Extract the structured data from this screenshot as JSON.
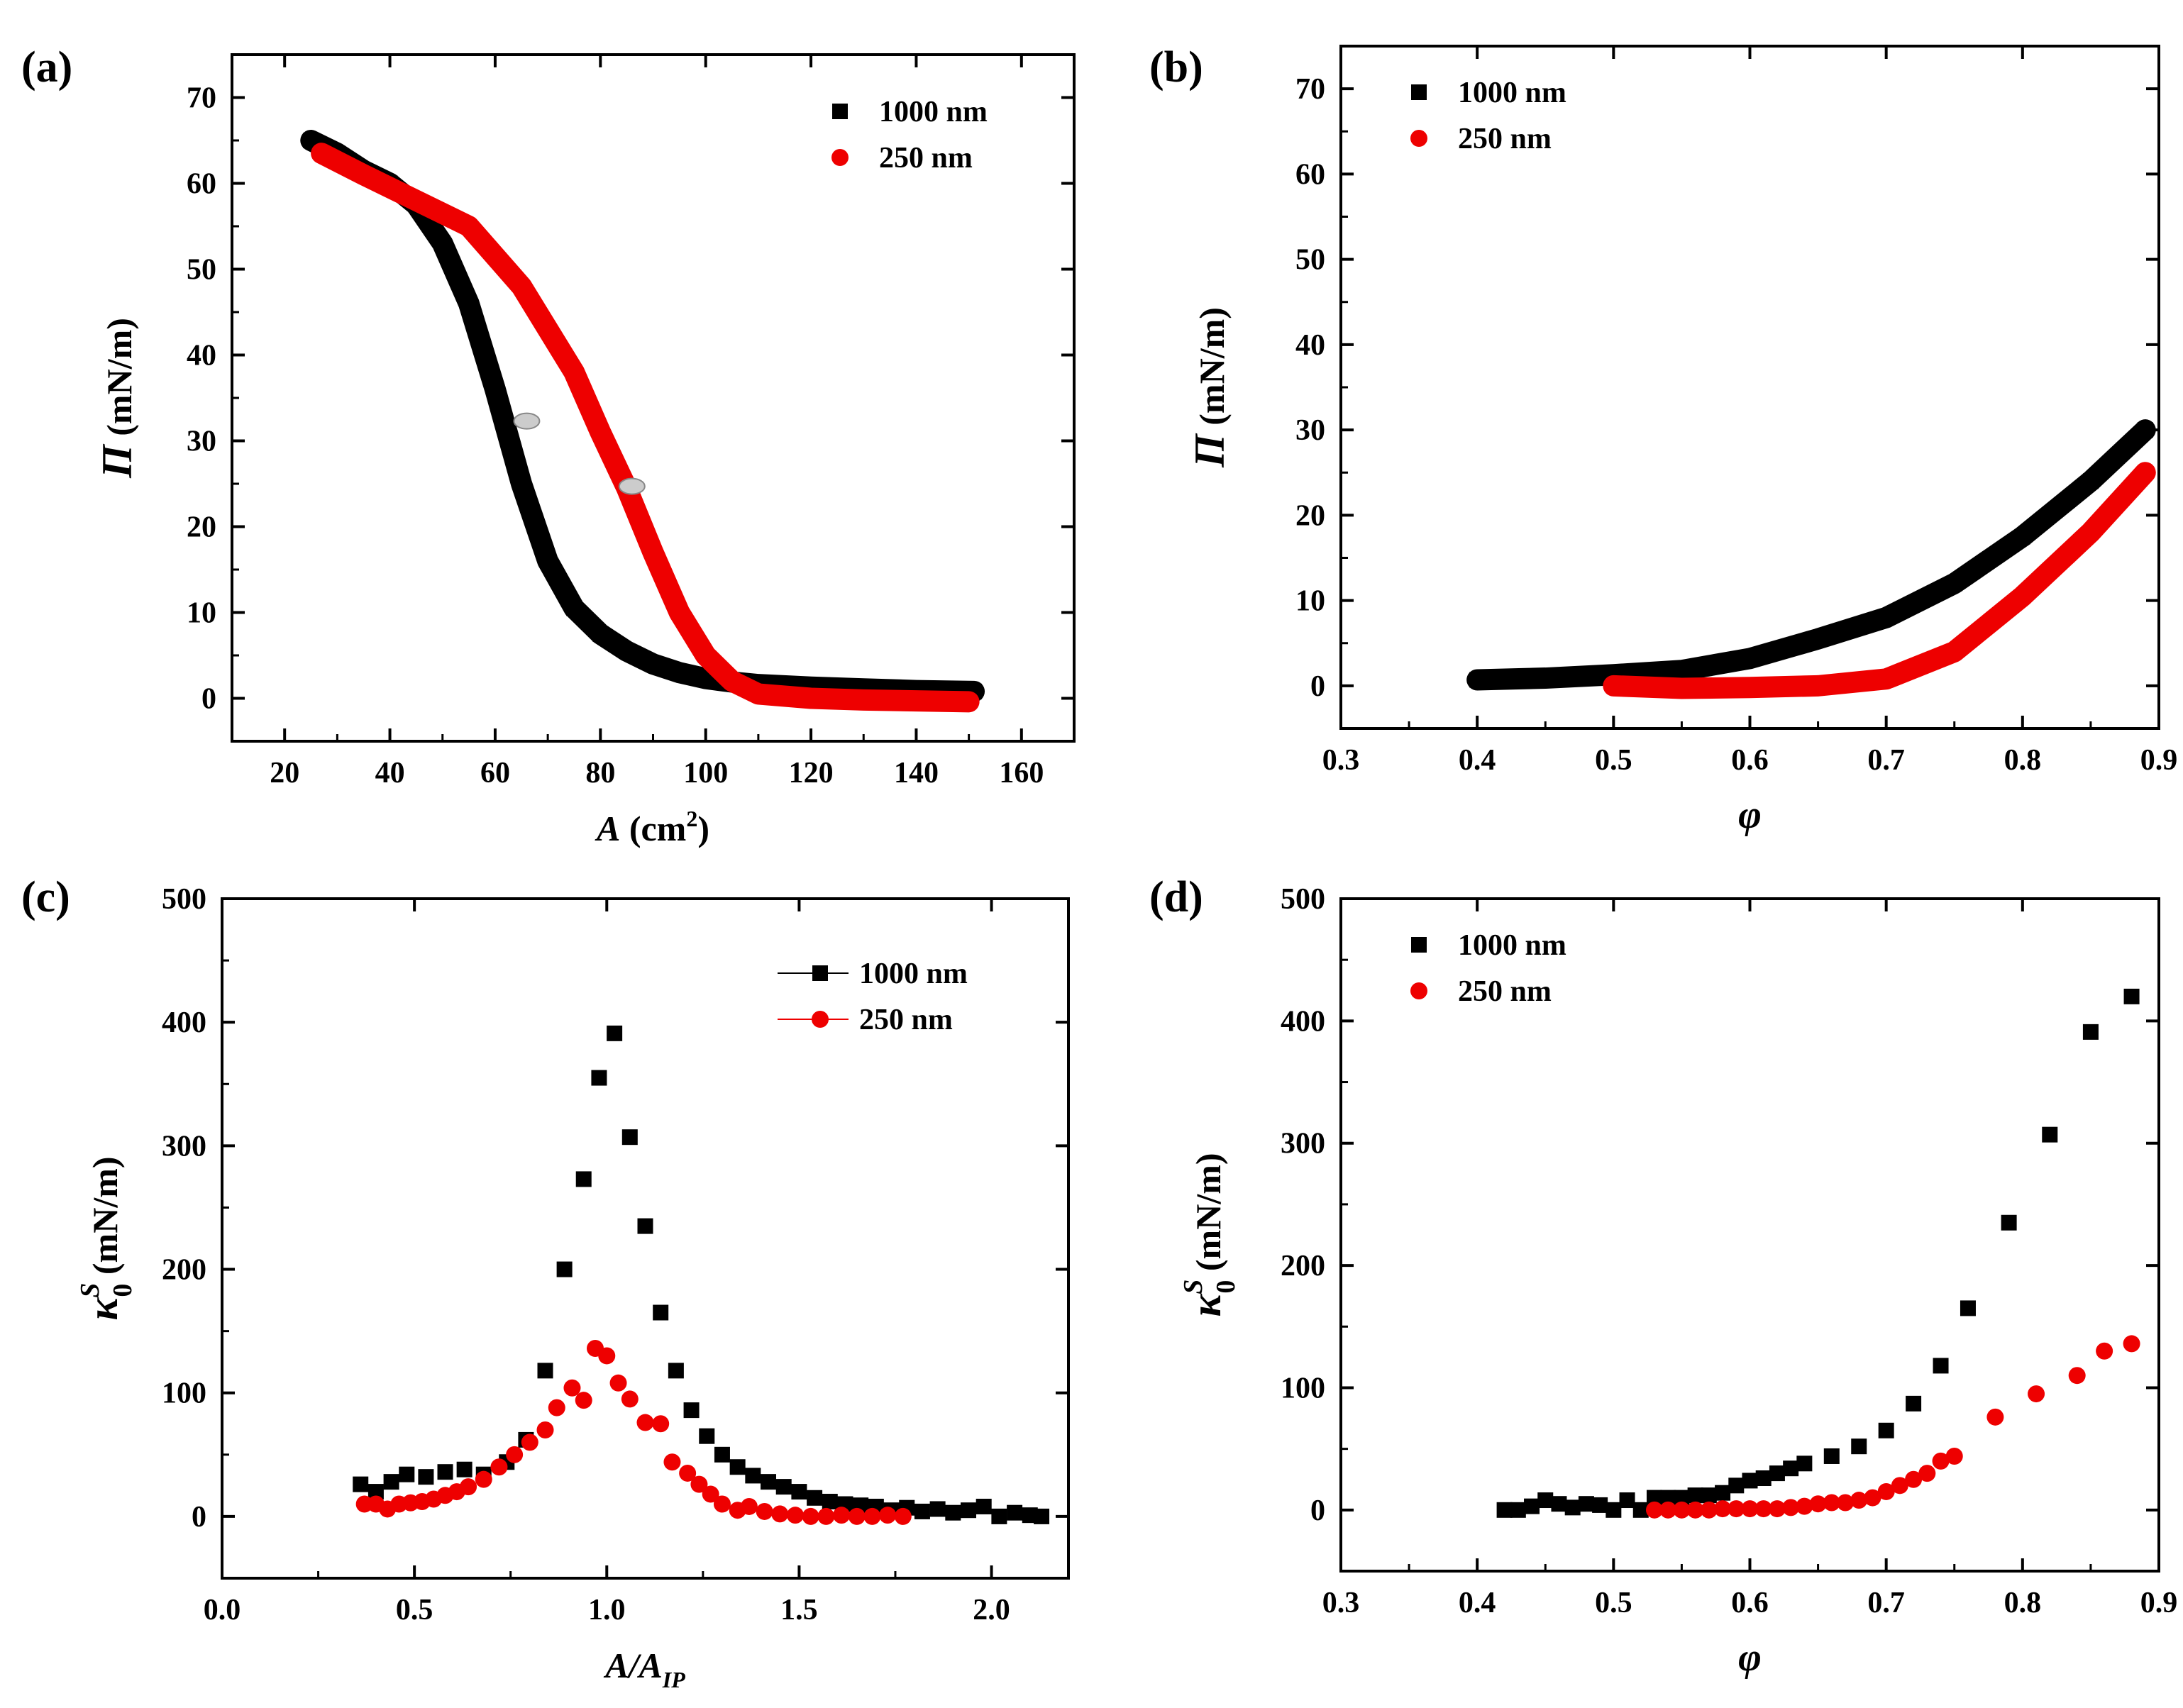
{
  "chart_data": [
    {
      "panel": "(a)",
      "type": "scatter",
      "xlabel": "A (cm²)",
      "xlabel_parts": {
        "sym": "A",
        "unit": " (cm",
        "sup": "2",
        "close": ")"
      },
      "ylabel": "Π (mN/m)",
      "ylabel_parts": {
        "sym": "Π",
        "unit": " (mN/m)"
      },
      "xlim": [
        10,
        170
      ],
      "ylim": [
        -5,
        75
      ],
      "xticks": [
        20,
        40,
        60,
        80,
        100,
        120,
        140,
        160
      ],
      "yticks": [
        0,
        10,
        20,
        30,
        40,
        50,
        60,
        70
      ],
      "legend": [
        {
          "label": "1000 nm",
          "marker": "square",
          "color": "#000000"
        },
        {
          "label": "250 nm",
          "marker": "circle",
          "color": "#ee0000"
        }
      ],
      "legend_placement": "top-right",
      "series": [
        {
          "name": "1000 nm",
          "color": "#000000",
          "marker": "square",
          "x": [
            25,
            30,
            35,
            40,
            45,
            50,
            55,
            60,
            65,
            70,
            75,
            80,
            85,
            90,
            95,
            100,
            105,
            110,
            120,
            130,
            140,
            151
          ],
          "y": [
            65,
            63.5,
            61.5,
            60,
            57.5,
            53,
            46,
            36,
            25,
            16,
            10.5,
            7.5,
            5.5,
            4,
            3,
            2.3,
            1.9,
            1.6,
            1.3,
            1.1,
            0.9,
            0.8
          ]
        },
        {
          "name": "250 nm",
          "color": "#ee0000",
          "marker": "circle",
          "x": [
            27,
            35,
            45,
            55,
            65,
            75,
            80,
            85,
            90,
            95,
            100,
            105,
            110,
            120,
            130,
            140,
            150
          ],
          "y": [
            63.5,
            61,
            58,
            55,
            48,
            38,
            31,
            24.5,
            17,
            10,
            5,
            2,
            0.5,
            0,
            -0.2,
            -0.3,
            -0.4
          ]
        }
      ],
      "annotations": [
        {
          "series": "1000 nm",
          "x": 66,
          "y": 32.3,
          "type": "inflection-marker"
        },
        {
          "series": "250 nm",
          "x": 86,
          "y": 24.7,
          "type": "inflection-marker"
        }
      ]
    },
    {
      "panel": "(b)",
      "type": "scatter",
      "xlabel": "φ",
      "ylabel": "Π (mN/m)",
      "ylabel_parts": {
        "sym": "Π",
        "unit": " (mN/m)"
      },
      "xlim": [
        0.3,
        0.9
      ],
      "ylim": [
        -5,
        75
      ],
      "xticks": [
        0.3,
        0.4,
        0.5,
        0.6,
        0.7,
        0.8,
        0.9
      ],
      "yticks": [
        0,
        10,
        20,
        30,
        40,
        50,
        60,
        70
      ],
      "legend": [
        {
          "label": "1000 nm",
          "marker": "square",
          "color": "#000000"
        },
        {
          "label": "250 nm",
          "marker": "circle",
          "color": "#ee0000"
        }
      ],
      "legend_placement": "top-left",
      "series": [
        {
          "name": "1000 nm",
          "color": "#000000",
          "marker": "square",
          "x": [
            0.4,
            0.45,
            0.5,
            0.55,
            0.6,
            0.65,
            0.7,
            0.75,
            0.8,
            0.85,
            0.89
          ],
          "y": [
            0.7,
            0.9,
            1.3,
            1.8,
            3.2,
            5.5,
            8,
            12,
            17.5,
            24,
            30
          ]
        },
        {
          "name": "250 nm",
          "color": "#ee0000",
          "marker": "circle",
          "x": [
            0.5,
            0.55,
            0.6,
            0.65,
            0.7,
            0.75,
            0.8,
            0.85,
            0.89
          ],
          "y": [
            0,
            -0.3,
            -0.2,
            0,
            0.8,
            4,
            10.5,
            18,
            25
          ]
        }
      ]
    },
    {
      "panel": "(c)",
      "type": "scatter",
      "xlabel": "A/A_IP",
      "xlabel_parts": {
        "a": "A/A",
        "sub": "IP"
      },
      "ylabel": "κ₀ˢ (mN/m)",
      "ylabel_parts": {
        "sym": "κ",
        "sub": "0",
        "sup": "S",
        "unit": " (mN/m)"
      },
      "xlim": [
        0,
        2.2
      ],
      "ylim": [
        -50,
        500
      ],
      "xticks": [
        0.0,
        0.5,
        1.0,
        1.5,
        2.0
      ],
      "xtick_labels": [
        "0.0",
        "0.5",
        "1.0",
        "1.5",
        "2.0"
      ],
      "yticks": [
        0,
        100,
        200,
        300,
        400,
        500
      ],
      "legend": [
        {
          "label": "1000 nm",
          "marker": "square",
          "color": "#000000",
          "line": true
        },
        {
          "label": "250 nm",
          "marker": "circle",
          "color": "#ee0000",
          "line": true
        }
      ],
      "legend_placement": "top-right",
      "series": [
        {
          "name": "1000 nm",
          "color": "#000000",
          "marker": "square",
          "x": [
            0.36,
            0.4,
            0.44,
            0.48,
            0.53,
            0.58,
            0.63,
            0.68,
            0.74,
            0.79,
            0.84,
            0.89,
            0.94,
            0.98,
            1.02,
            1.06,
            1.1,
            1.14,
            1.18,
            1.22,
            1.26,
            1.3,
            1.34,
            1.38,
            1.42,
            1.46,
            1.5,
            1.54,
            1.58,
            1.62,
            1.66,
            1.7,
            1.74,
            1.78,
            1.82,
            1.86,
            1.9,
            1.94,
            1.98,
            2.02,
            2.06,
            2.1,
            2.13
          ],
          "y": [
            26,
            20,
            28,
            34,
            32,
            36,
            38,
            34,
            44,
            62,
            118,
            200,
            273,
            355,
            391,
            307,
            235,
            165,
            118,
            86,
            65,
            50,
            40,
            33,
            28,
            24,
            20,
            15,
            12,
            10,
            9,
            8,
            5,
            7,
            4,
            6,
            3,
            5,
            8,
            0,
            3,
            1,
            0
          ]
        },
        {
          "name": "250 nm",
          "color": "#ee0000",
          "marker": "circle",
          "x": [
            0.37,
            0.4,
            0.43,
            0.46,
            0.49,
            0.52,
            0.55,
            0.58,
            0.61,
            0.64,
            0.68,
            0.72,
            0.76,
            0.8,
            0.84,
            0.87,
            0.91,
            0.94,
            0.97,
            1.0,
            1.03,
            1.06,
            1.1,
            1.14,
            1.17,
            1.21,
            1.24,
            1.27,
            1.3,
            1.34,
            1.37,
            1.41,
            1.45,
            1.49,
            1.53,
            1.57,
            1.61,
            1.65,
            1.69,
            1.73,
            1.77
          ],
          "y": [
            10,
            10,
            6,
            10,
            11,
            12,
            14,
            17,
            20,
            24,
            30,
            40,
            50,
            60,
            70,
            88,
            104,
            94,
            136,
            130,
            108,
            95,
            76,
            75,
            44,
            35,
            26,
            18,
            10,
            5,
            8,
            4,
            2,
            1,
            0,
            0,
            1,
            0,
            0,
            1,
            0
          ]
        }
      ]
    },
    {
      "panel": "(d)",
      "type": "scatter",
      "xlabel": "φ",
      "ylabel": "κ₀ˢ (mN/m)",
      "ylabel_parts": {
        "sym": "κ",
        "sub": "0",
        "sup": "S",
        "unit": " (mN/m)"
      },
      "xlim": [
        0.3,
        0.9
      ],
      "ylim": [
        -50,
        500
      ],
      "xticks": [
        0.3,
        0.4,
        0.5,
        0.6,
        0.7,
        0.8,
        0.9
      ],
      "yticks": [
        0,
        100,
        200,
        300,
        400,
        500
      ],
      "legend": [
        {
          "label": "1000 nm",
          "marker": "square",
          "color": "#000000"
        },
        {
          "label": "250 nm",
          "marker": "circle",
          "color": "#ee0000"
        }
      ],
      "legend_placement": "top-left",
      "series": [
        {
          "name": "1000 nm",
          "color": "#000000",
          "marker": "square",
          "x": [
            0.42,
            0.43,
            0.44,
            0.45,
            0.46,
            0.47,
            0.48,
            0.49,
            0.5,
            0.51,
            0.52,
            0.53,
            0.54,
            0.55,
            0.56,
            0.57,
            0.58,
            0.59,
            0.6,
            0.61,
            0.62,
            0.63,
            0.64,
            0.66,
            0.68,
            0.7,
            0.72,
            0.74,
            0.76,
            0.79,
            0.82,
            0.85,
            0.88
          ],
          "y": [
            0,
            0,
            3,
            8,
            5,
            2,
            5,
            4,
            0,
            8,
            0,
            10,
            10,
            10,
            12,
            12,
            14,
            20,
            24,
            26,
            30,
            34,
            38,
            44,
            52,
            65,
            87,
            118,
            165,
            235,
            307,
            391,
            420
          ]
        },
        {
          "name": "250 nm",
          "color": "#ee0000",
          "marker": "circle",
          "x": [
            0.53,
            0.54,
            0.55,
            0.56,
            0.57,
            0.58,
            0.59,
            0.6,
            0.61,
            0.62,
            0.63,
            0.64,
            0.65,
            0.66,
            0.67,
            0.68,
            0.69,
            0.7,
            0.71,
            0.72,
            0.73,
            0.74,
            0.75,
            0.78,
            0.81,
            0.84,
            0.86,
            0.88
          ],
          "y": [
            0,
            0,
            0,
            0,
            0,
            1,
            1,
            1,
            1,
            1,
            2,
            3,
            5,
            6,
            6,
            8,
            10,
            15,
            20,
            25,
            30,
            40,
            44,
            76,
            95,
            110,
            130,
            136
          ]
        }
      ]
    }
  ]
}
